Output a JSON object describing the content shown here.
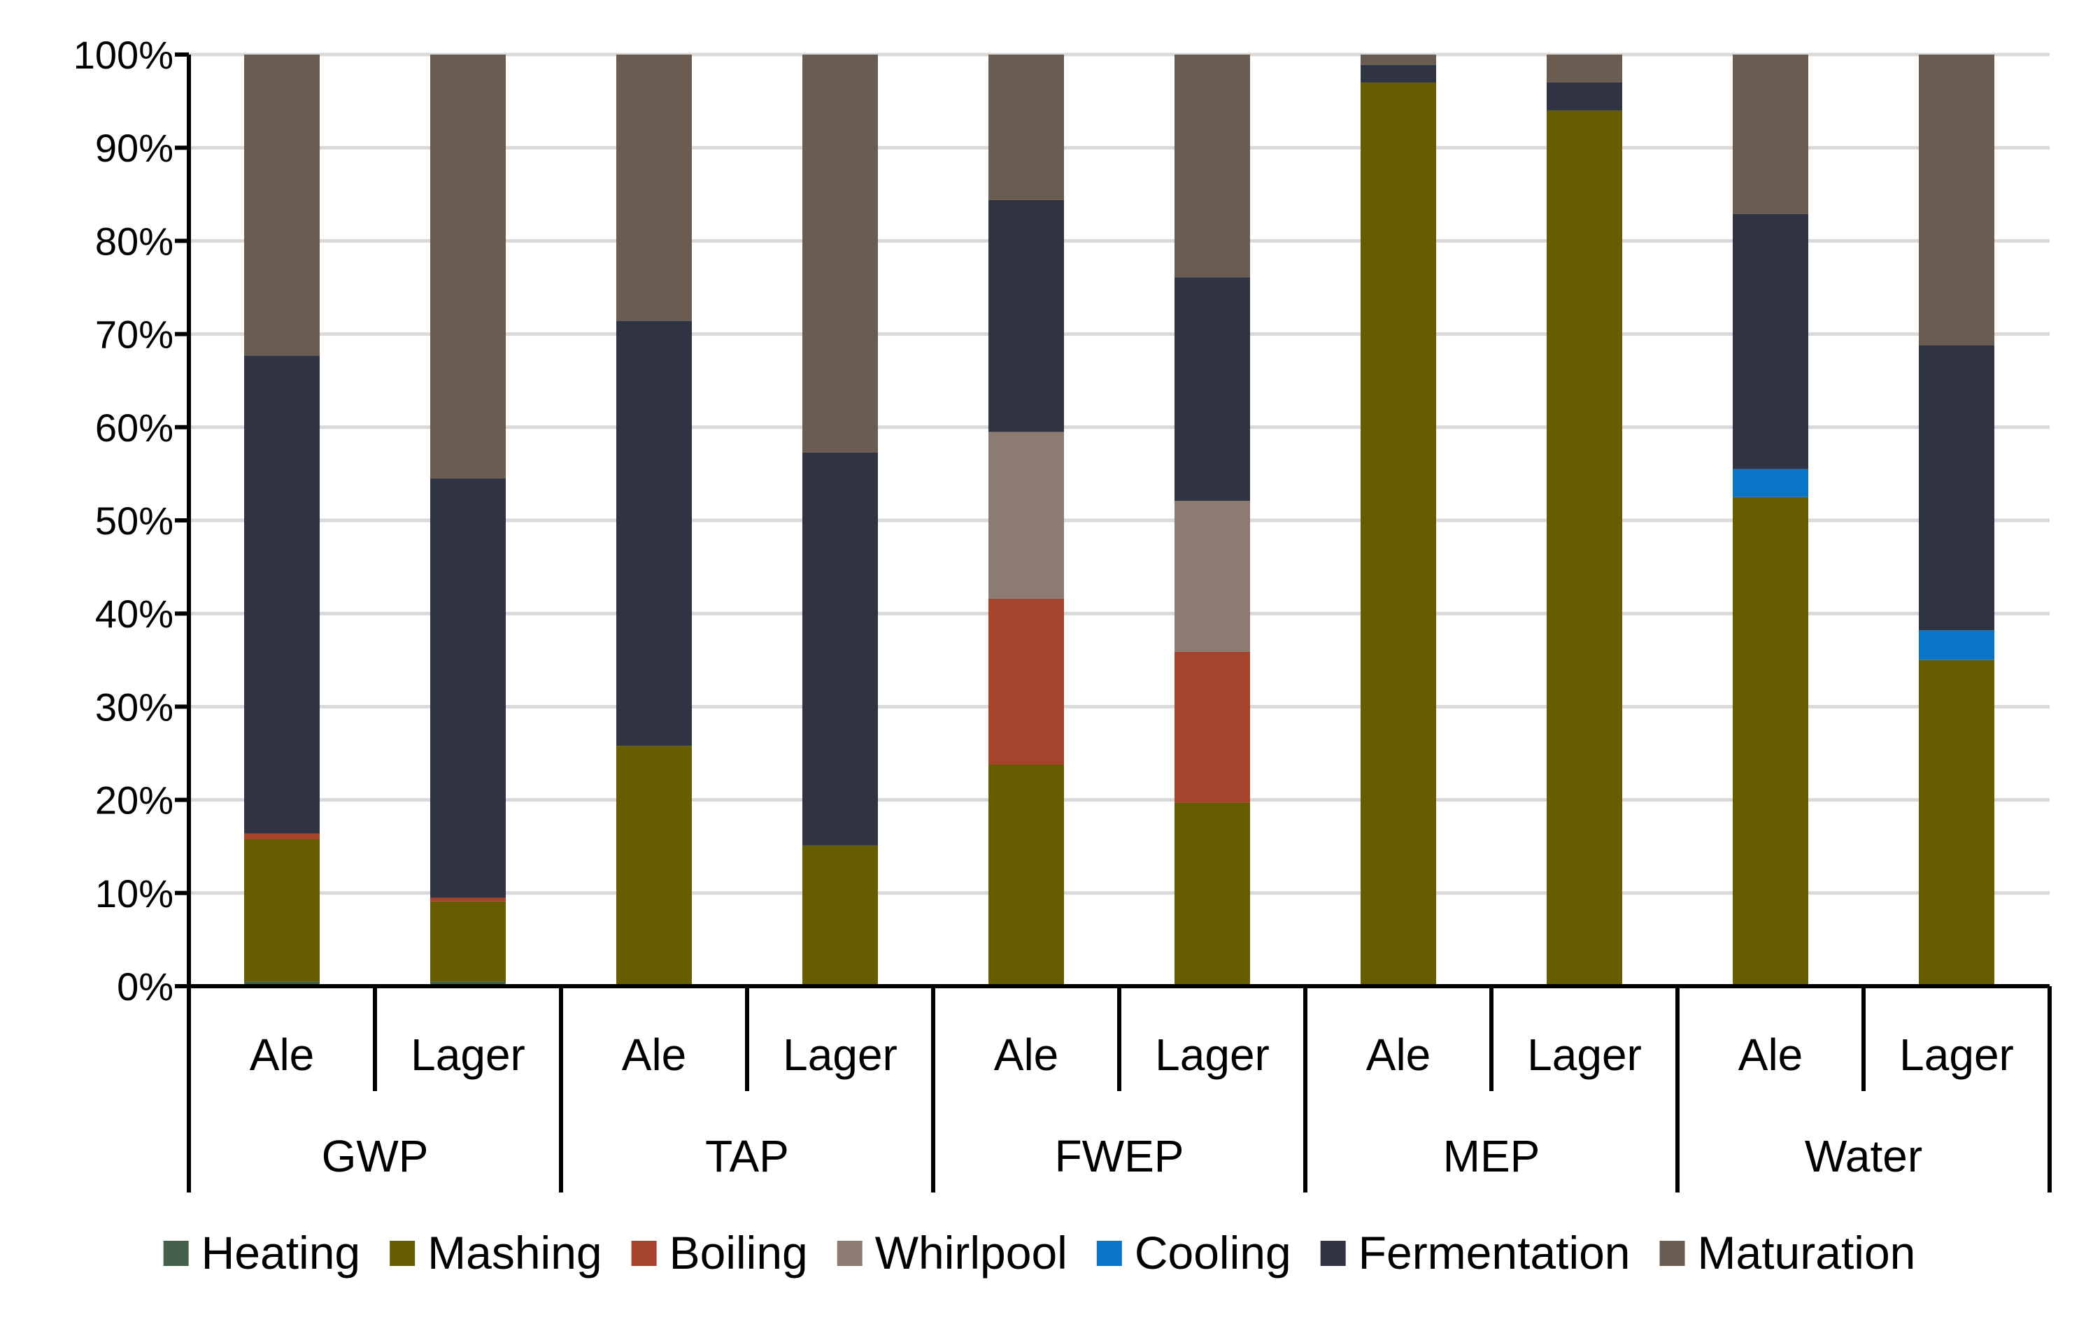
{
  "chart_data": {
    "type": "bar",
    "stacked": true,
    "percent": true,
    "title": "",
    "xlabel": "",
    "ylabel": "",
    "ylim": [
      0,
      100
    ],
    "y_ticks": [
      "0%",
      "10%",
      "20%",
      "30%",
      "40%",
      "50%",
      "60%",
      "70%",
      "80%",
      "90%",
      "100%"
    ],
    "grid": true,
    "legend_position": "bottom",
    "groups": [
      "GWP",
      "TAP",
      "FWEP",
      "MEP",
      "Water"
    ],
    "subcategories": [
      "Ale",
      "Lager"
    ],
    "categories": [
      "GWP Ale",
      "GWP Lager",
      "TAP Ale",
      "TAP Lager",
      "FWEP Ale",
      "FWEP Lager",
      "MEP Ale",
      "MEP Lager",
      "Water Ale",
      "Water Lager"
    ],
    "series": [
      {
        "name": "Heating",
        "color": "#43614a",
        "values": [
          0.5,
          0.5,
          0,
          0,
          0,
          0,
          0,
          0,
          0,
          0
        ]
      },
      {
        "name": "Mashing",
        "color": "#665c00",
        "values": [
          15.3,
          8.6,
          25.8,
          15.1,
          23.8,
          19.7,
          97.0,
          94.0,
          52.5,
          35.0
        ]
      },
      {
        "name": "Boiling",
        "color": "#a5432c",
        "values": [
          0.6,
          0.4,
          0,
          0,
          17.8,
          16.2,
          0,
          0,
          0,
          0
        ]
      },
      {
        "name": "Whirlpool",
        "color": "#8b7b70",
        "values": [
          0,
          0,
          0,
          0,
          17.9,
          16.2,
          0,
          0,
          0,
          0
        ]
      },
      {
        "name": "Cooling",
        "color": "#0a74c6",
        "values": [
          0,
          0,
          0,
          0,
          0,
          0,
          0,
          0,
          3.0,
          3.2
        ]
      },
      {
        "name": "Fermentation",
        "color": "#2f3342",
        "values": [
          51.3,
          45.0,
          45.6,
          42.2,
          24.9,
          24.0,
          1.9,
          3.0,
          27.4,
          30.6
        ]
      },
      {
        "name": "Maturation",
        "color": "#6b5c52",
        "values": [
          32.3,
          45.5,
          28.6,
          42.7,
          15.6,
          23.9,
          1.1,
          3.0,
          17.1,
          31.2
        ]
      }
    ]
  }
}
